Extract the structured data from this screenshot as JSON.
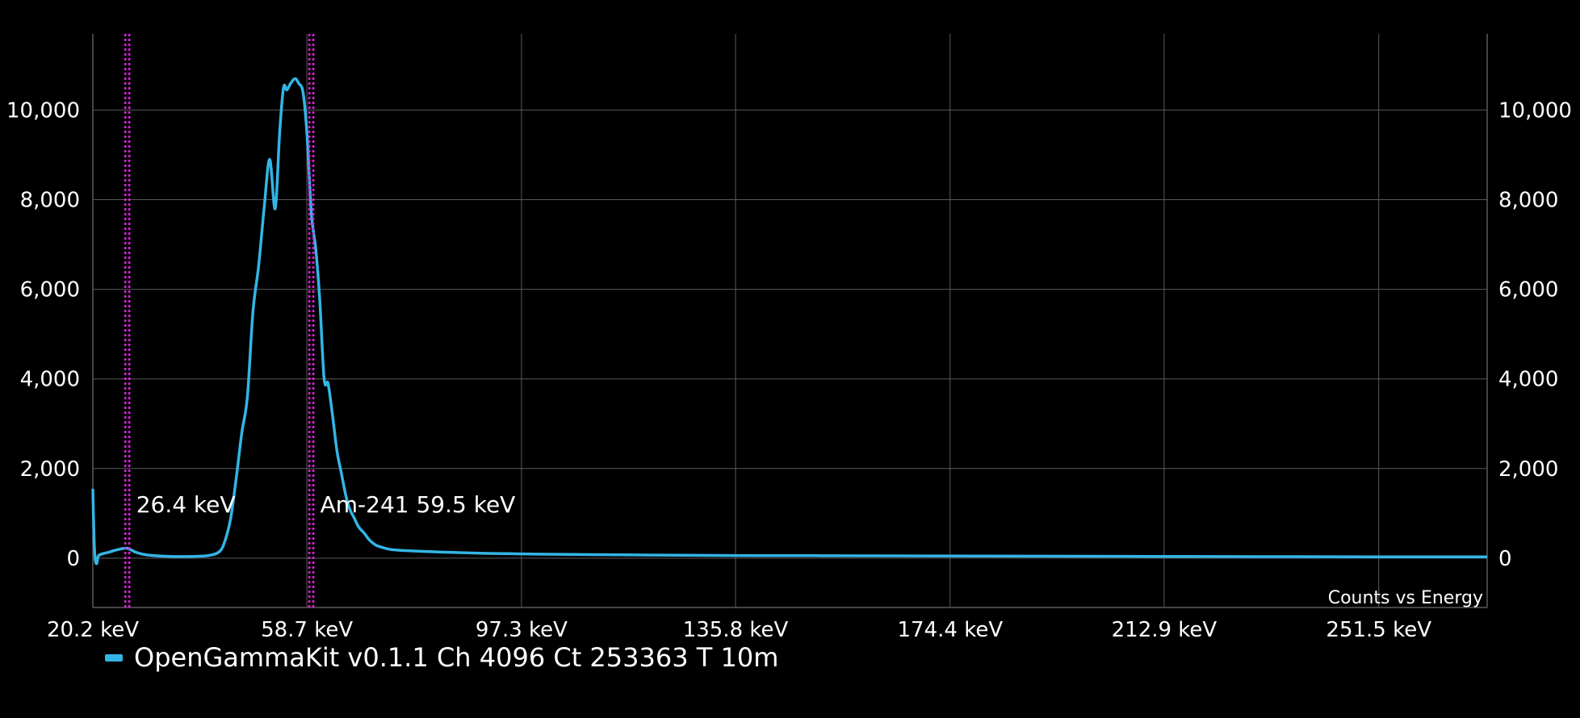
{
  "chart_data": {
    "type": "line",
    "title": "",
    "description": "Counts vs Energy",
    "x_unit": "keV",
    "xlim": [
      20.2,
      271.0
    ],
    "ylim": [
      -1100,
      11700
    ],
    "x_ticks": [
      20.2,
      58.7,
      97.3,
      135.8,
      174.4,
      212.9,
      251.5
    ],
    "x_tick_labels": [
      "20.2 keV",
      "58.7 keV",
      "97.3 keV",
      "135.8 keV",
      "174.4 keV",
      "212.9 keV",
      "251.5 keV"
    ],
    "y_ticks": [
      0,
      2000,
      4000,
      6000,
      8000,
      10000
    ],
    "y_tick_labels": [
      "0",
      "2,000",
      "4,000",
      "6,000",
      "8,000",
      "10,000"
    ],
    "grid": true,
    "legend_position": "bottom-left",
    "colors": {
      "series": "#33b5e5",
      "marker": "#e020e0",
      "grid": "#5a5a5a",
      "background": "#000000"
    },
    "markers": [
      {
        "x": 26.4,
        "label": "26.4 keV"
      },
      {
        "x": 59.5,
        "label": "Am-241 59.5 keV"
      }
    ],
    "series": [
      {
        "name": "OpenGammaKit v0.1.1 Ch 4096 Ct 253363 T 10m",
        "x": [
          20.2,
          20.4,
          20.6,
          20.9,
          21.2,
          22.0,
          23.0,
          24.0,
          25.0,
          26.4,
          28.0,
          30.0,
          34.0,
          38.0,
          41.0,
          43.0,
          44.0,
          45.0,
          46.0,
          47.0,
          48.0,
          49.0,
          50.0,
          51.0,
          52.0,
          53.0,
          53.8,
          54.5,
          55.1,
          55.8,
          56.6,
          57.2,
          58.0,
          58.7,
          59.5,
          60.3,
          61.0,
          61.8,
          62.5,
          63.3,
          64.1,
          64.9,
          65.7,
          66.4,
          67.2,
          68.0,
          69.0,
          70.0,
          71.0,
          72.0,
          73.5,
          75.0,
          76.5,
          78.0,
          80.0,
          82.0,
          85.0,
          90.0,
          95.0,
          100.0,
          110.0,
          120.0,
          135.0,
          150.0,
          170.0,
          190.0,
          210.0,
          230.0,
          250.0,
          271.0
        ],
        "values": [
          1550,
          500,
          0,
          -120,
          50,
          100,
          130,
          170,
          200,
          220,
          130,
          70,
          40,
          40,
          60,
          150,
          400,
          900,
          1800,
          2800,
          3600,
          5500,
          6500,
          7800,
          8900,
          7800,
          9500,
          10500,
          10450,
          10600,
          10700,
          10600,
          10400,
          9500,
          7700,
          6900,
          5800,
          4000,
          3900,
          3200,
          2400,
          1900,
          1400,
          1100,
          900,
          700,
          560,
          400,
          300,
          250,
          200,
          180,
          170,
          160,
          150,
          140,
          130,
          110,
          100,
          90,
          80,
          70,
          60,
          55,
          50,
          45,
          40,
          35,
          30,
          30
        ]
      }
    ]
  }
}
